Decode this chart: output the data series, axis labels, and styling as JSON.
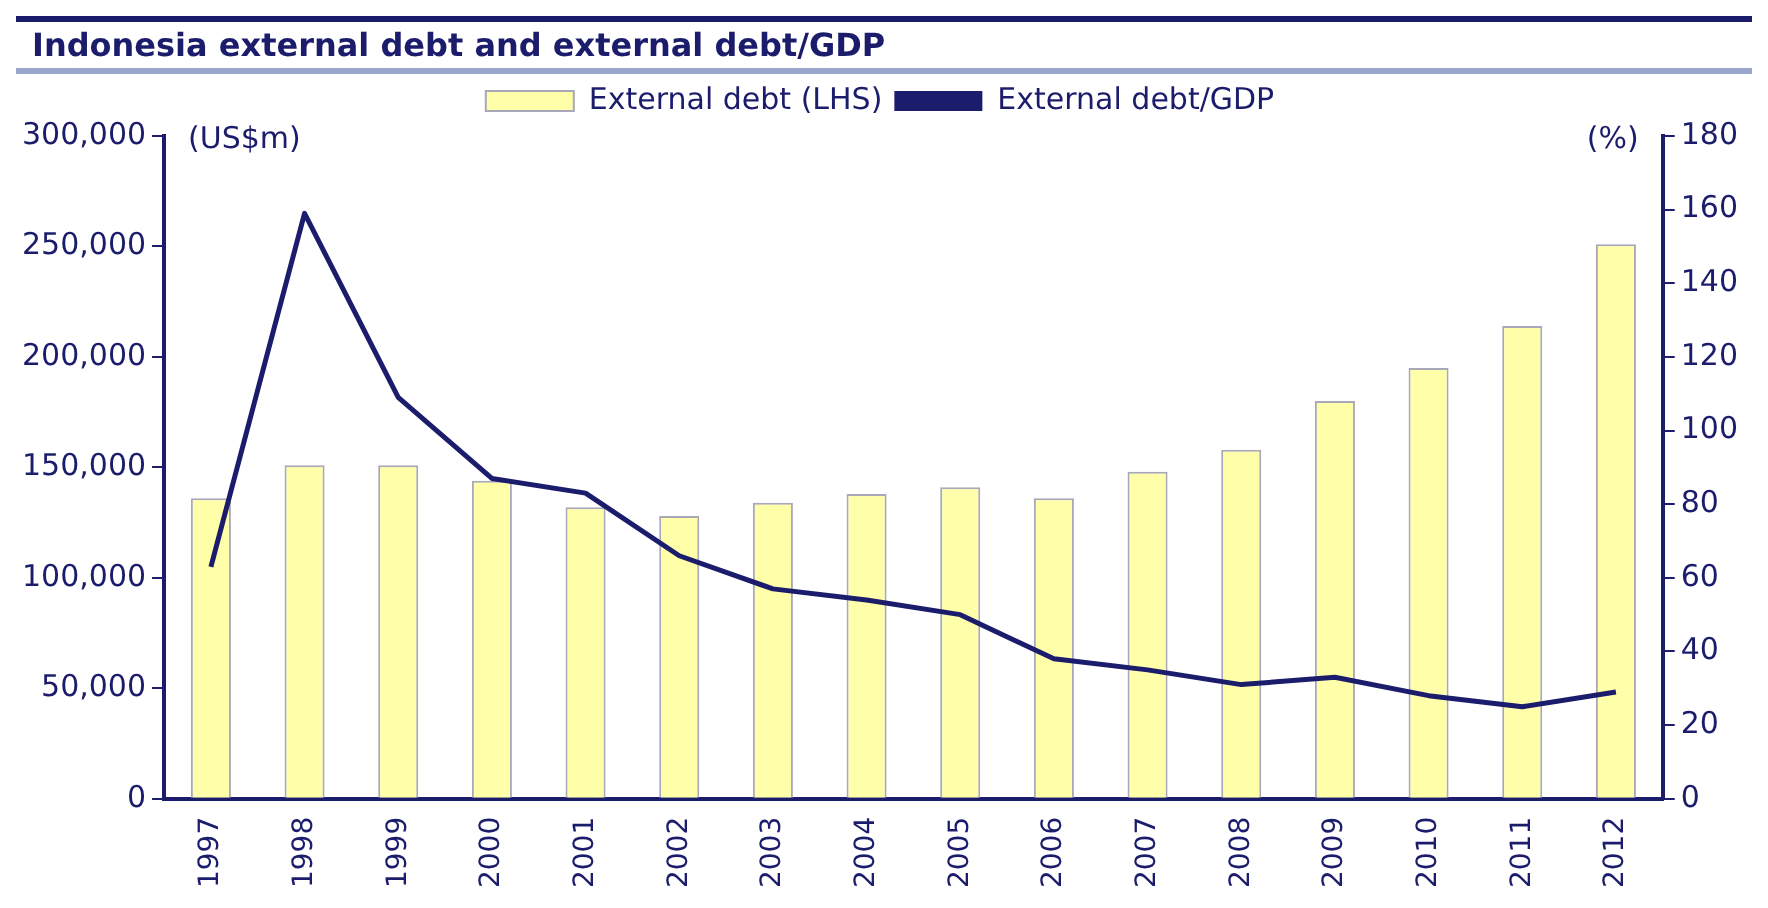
{
  "chart_data": {
    "type": "bar",
    "title": "Indonesia external debt and external debt/GDP",
    "ylabel": "(US$m)",
    "y2label": "(%)",
    "categories": [
      "1997",
      "1998",
      "1999",
      "2000",
      "2001",
      "2002",
      "2003",
      "2004",
      "2005",
      "2006",
      "2007",
      "2008",
      "2009",
      "2010",
      "2011",
      "2012"
    ],
    "series": [
      {
        "name": "External debt (LHS)",
        "color": "#ffffaa",
        "values": [
          136000,
          151000,
          151000,
          144000,
          132000,
          128000,
          134000,
          138000,
          141000,
          136000,
          148000,
          158000,
          180000,
          195000,
          214000,
          251000
        ]
      },
      {
        "name": "External debt/GDP",
        "type": "line",
        "axis": "y2",
        "color": "#1c1c6c",
        "values": [
          63,
          159,
          109,
          87,
          83,
          66,
          57,
          54,
          50,
          38,
          35,
          31,
          33,
          28,
          25,
          29
        ]
      }
    ],
    "ylim": [
      0,
      300000
    ],
    "yticks": [
      {
        "value": 0,
        "label": "0"
      },
      {
        "value": 50000,
        "label": "50,000"
      },
      {
        "value": 100000,
        "label": "100,000"
      },
      {
        "value": 150000,
        "label": "150,000"
      },
      {
        "value": 200000,
        "label": "200,000"
      },
      {
        "value": 250000,
        "label": "250,000"
      },
      {
        "value": 300000,
        "label": "300,000"
      }
    ],
    "y2lim": [
      0,
      180
    ],
    "y2ticks": [
      0,
      20,
      40,
      60,
      80,
      100,
      120,
      140,
      160,
      180
    ],
    "grid": false,
    "legend": "top",
    "marker": "none",
    "line_style": "solid"
  }
}
